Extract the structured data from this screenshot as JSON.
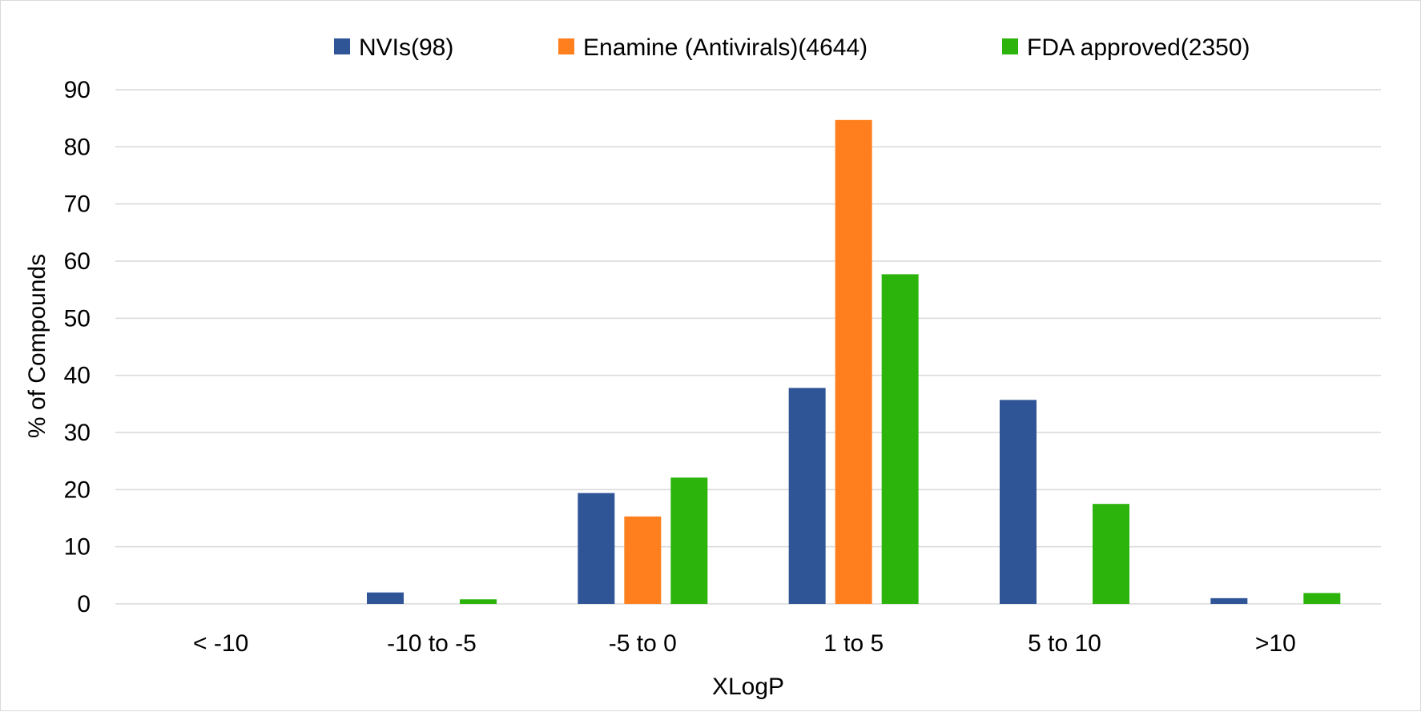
{
  "chart_data": {
    "type": "bar",
    "title": "",
    "xlabel": "XLogP",
    "ylabel": "% of Compounds",
    "categories": [
      "< -10",
      "-10 to -5",
      "-5 to 0",
      "1 to 5",
      "5 to 10",
      ">10"
    ],
    "series": [
      {
        "name": "NVIs(98)",
        "color": "#2F5597",
        "values": [
          0,
          2,
          19.4,
          37.8,
          35.7,
          1
        ]
      },
      {
        "name": "Enamine (Antivirals)(4644)",
        "color": "#FF7F1E",
        "values": [
          0,
          0,
          15.3,
          84.7,
          0,
          0
        ]
      },
      {
        "name": "FDA approved(2350)",
        "color": "#2CB40C",
        "values": [
          0,
          0.8,
          22.1,
          57.7,
          17.5,
          1.9
        ]
      }
    ],
    "ylim": [
      0,
      90
    ],
    "yticks": [
      0,
      10,
      20,
      30,
      40,
      50,
      60,
      70,
      80,
      90
    ],
    "grid": true,
    "gridline_color": "#d9d9d9",
    "legend_position": "top"
  }
}
